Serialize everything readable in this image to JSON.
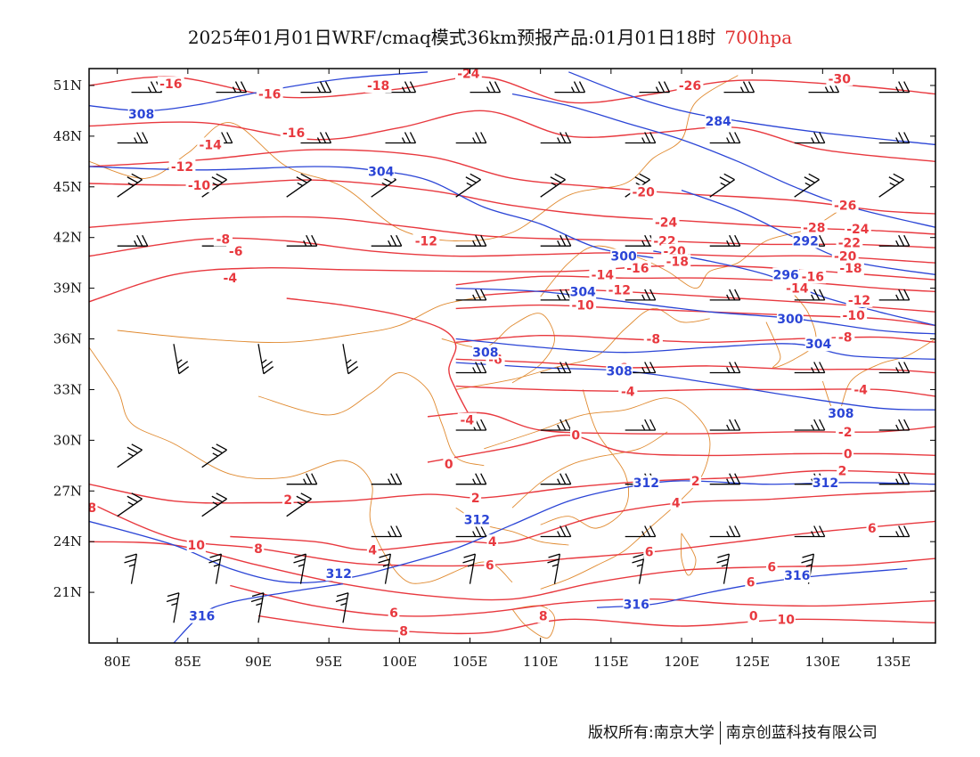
{
  "header": {
    "title": "2025年01月01日WRF/cmaq模式36km预报产品:01月01日18时",
    "level": "700hpa"
  },
  "map": {
    "lon_range": [
      78,
      138
    ],
    "lat_range": [
      18,
      52
    ],
    "lon_ticks": [
      80,
      85,
      90,
      95,
      100,
      105,
      110,
      115,
      120,
      125,
      130,
      135
    ],
    "lon_tick_labels": [
      "80E",
      "85E",
      "90E",
      "95E",
      "100E",
      "105E",
      "110E",
      "115E",
      "120E",
      "125E",
      "130E",
      "135E"
    ],
    "lat_ticks": [
      21,
      24,
      27,
      30,
      33,
      36,
      39,
      42,
      45,
      48,
      51
    ],
    "lat_tick_labels": [
      "21N",
      "24N",
      "27N",
      "30N",
      "33N",
      "36N",
      "39N",
      "42N",
      "45N",
      "48N",
      "51N"
    ],
    "colors": {
      "temperature": "#e8393f",
      "geopotential": "#2b45d6",
      "boundary": "#e08a30",
      "wind": "#000000",
      "frame": "#000000"
    },
    "temperature_labels": [
      {
        "text": "-16",
        "lon": 83.8,
        "lat": 51.1
      },
      {
        "text": "-16",
        "lon": 90.8,
        "lat": 50.5
      },
      {
        "text": "-18",
        "lon": 98.5,
        "lat": 51.0
      },
      {
        "text": "-24",
        "lon": 104.9,
        "lat": 51.7
      },
      {
        "text": "-26",
        "lon": 120.6,
        "lat": 51.0
      },
      {
        "text": "-30",
        "lon": 131.2,
        "lat": 51.4
      },
      {
        "text": "-16",
        "lon": 92.5,
        "lat": 48.2
      },
      {
        "text": "-14",
        "lon": 86.6,
        "lat": 47.5
      },
      {
        "text": "-12",
        "lon": 84.6,
        "lat": 46.2
      },
      {
        "text": "-10",
        "lon": 85.8,
        "lat": 45.1
      },
      {
        "text": "-20",
        "lon": 117.3,
        "lat": 44.7
      },
      {
        "text": "-26",
        "lon": 131.6,
        "lat": 43.9
      },
      {
        "text": "-24",
        "lon": 118.9,
        "lat": 42.9
      },
      {
        "text": "-28",
        "lon": 129.4,
        "lat": 42.6
      },
      {
        "text": "-24",
        "lon": 132.5,
        "lat": 42.5
      },
      {
        "text": "-22",
        "lon": 118.8,
        "lat": 41.8
      },
      {
        "text": "-22",
        "lon": 131.9,
        "lat": 41.7
      },
      {
        "text": "-20",
        "lon": 119.5,
        "lat": 41.2
      },
      {
        "text": "-20",
        "lon": 131.6,
        "lat": 40.9
      },
      {
        "text": "-18",
        "lon": 119.7,
        "lat": 40.6
      },
      {
        "text": "-18",
        "lon": 132.0,
        "lat": 40.2
      },
      {
        "text": "-16",
        "lon": 116.9,
        "lat": 40.2
      },
      {
        "text": "-16",
        "lon": 129.3,
        "lat": 39.7
      },
      {
        "text": "-14",
        "lon": 114.4,
        "lat": 39.8
      },
      {
        "text": "-14",
        "lon": 128.2,
        "lat": 39.0
      },
      {
        "text": "-12",
        "lon": 115.6,
        "lat": 38.9
      },
      {
        "text": "-12",
        "lon": 132.6,
        "lat": 38.3
      },
      {
        "text": "-10",
        "lon": 113.0,
        "lat": 38.0
      },
      {
        "text": "-10",
        "lon": 132.2,
        "lat": 37.4
      },
      {
        "text": "-12",
        "lon": 101.9,
        "lat": 41.8
      },
      {
        "text": "-8",
        "lon": 87.5,
        "lat": 41.9
      },
      {
        "text": "-6",
        "lon": 88.4,
        "lat": 41.2
      },
      {
        "text": "-4",
        "lon": 88.0,
        "lat": 39.6
      },
      {
        "text": "-8",
        "lon": 118.0,
        "lat": 36.0
      },
      {
        "text": "-8",
        "lon": 131.6,
        "lat": 36.1
      },
      {
        "text": "-6",
        "lon": 115.7,
        "lat": 34.3
      },
      {
        "text": "-6",
        "lon": 106.8,
        "lat": 34.8
      },
      {
        "text": "-4",
        "lon": 116.2,
        "lat": 32.9
      },
      {
        "text": "-4",
        "lon": 132.7,
        "lat": 33.0
      },
      {
        "text": "-4",
        "lon": 104.8,
        "lat": 31.2
      },
      {
        "text": "-2",
        "lon": 131.6,
        "lat": 30.5
      },
      {
        "text": "0",
        "lon": 112.5,
        "lat": 30.3
      },
      {
        "text": "0",
        "lon": 131.8,
        "lat": 29.2
      },
      {
        "text": "0",
        "lon": 103.5,
        "lat": 28.6
      },
      {
        "text": "2",
        "lon": 121.0,
        "lat": 27.6
      },
      {
        "text": "2",
        "lon": 131.4,
        "lat": 28.2
      },
      {
        "text": "2",
        "lon": 105.4,
        "lat": 26.6
      },
      {
        "text": "2",
        "lon": 92.1,
        "lat": 26.5
      },
      {
        "text": "4",
        "lon": 119.6,
        "lat": 26.3
      },
      {
        "text": "4",
        "lon": 106.6,
        "lat": 24.0
      },
      {
        "text": "4",
        "lon": 98.1,
        "lat": 23.5
      },
      {
        "text": "6",
        "lon": 106.4,
        "lat": 22.6
      },
      {
        "text": "6",
        "lon": 117.7,
        "lat": 23.4
      },
      {
        "text": "6",
        "lon": 133.5,
        "lat": 24.8
      },
      {
        "text": "6",
        "lon": 126.4,
        "lat": 22.5
      },
      {
        "text": "6",
        "lon": 99.6,
        "lat": 19.8
      },
      {
        "text": "8",
        "lon": 78.2,
        "lat": 26.0
      },
      {
        "text": "8",
        "lon": 90.0,
        "lat": 23.6
      },
      {
        "text": "8",
        "lon": 100.3,
        "lat": 18.7
      },
      {
        "text": "8",
        "lon": 110.2,
        "lat": 19.6
      },
      {
        "text": "10",
        "lon": 85.6,
        "lat": 23.8
      },
      {
        "text": "10",
        "lon": 127.4,
        "lat": 19.4
      },
      {
        "text": "0",
        "lon": 125.1,
        "lat": 19.6
      },
      {
        "text": "6",
        "lon": 124.9,
        "lat": 21.6
      }
    ],
    "height_labels": [
      {
        "text": "308",
        "lon": 81.7,
        "lat": 49.3
      },
      {
        "text": "284",
        "lon": 122.6,
        "lat": 48.9
      },
      {
        "text": "304",
        "lon": 98.7,
        "lat": 45.9
      },
      {
        "text": "300",
        "lon": 115.9,
        "lat": 40.9
      },
      {
        "text": "292",
        "lon": 128.8,
        "lat": 41.8
      },
      {
        "text": "296",
        "lon": 127.4,
        "lat": 39.8
      },
      {
        "text": "300",
        "lon": 127.7,
        "lat": 37.2
      },
      {
        "text": "304",
        "lon": 113.0,
        "lat": 38.8
      },
      {
        "text": "304",
        "lon": 129.7,
        "lat": 35.7
      },
      {
        "text": "308",
        "lon": 106.1,
        "lat": 35.2
      },
      {
        "text": "308",
        "lon": 115.6,
        "lat": 34.1
      },
      {
        "text": "308",
        "lon": 131.3,
        "lat": 31.6
      },
      {
        "text": "312",
        "lon": 117.5,
        "lat": 27.5
      },
      {
        "text": "312",
        "lon": 130.2,
        "lat": 27.5
      },
      {
        "text": "312",
        "lon": 105.5,
        "lat": 25.3
      },
      {
        "text": "312",
        "lon": 95.7,
        "lat": 22.1
      },
      {
        "text": "316",
        "lon": 86.0,
        "lat": 19.6
      },
      {
        "text": "316",
        "lon": 116.8,
        "lat": 20.3
      },
      {
        "text": "316",
        "lon": 128.2,
        "lat": 22.0
      }
    ]
  },
  "footer": {
    "copyright_left": "版权所有:南京大学",
    "copyright_right": "南京创蓝科技有限公司"
  }
}
